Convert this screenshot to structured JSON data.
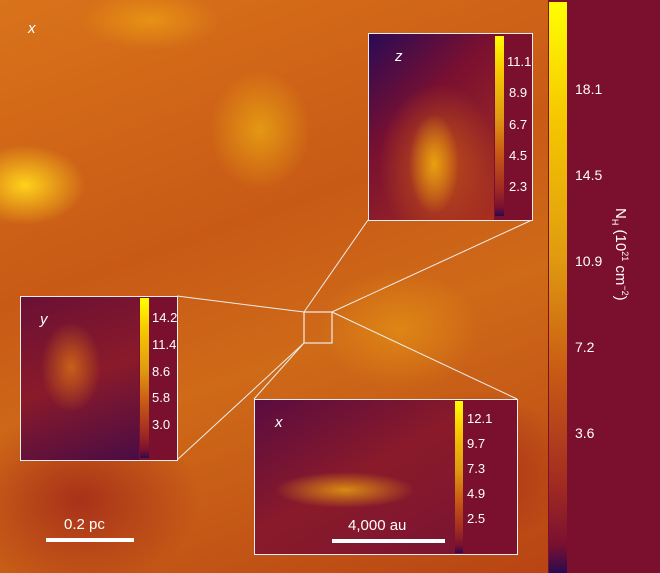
{
  "main": {
    "projection_label": "x",
    "scale_bar": "0.2 pc",
    "colorbar": {
      "label_main": "N",
      "label_sub": "H",
      "label_unit": " (10",
      "label_exp": "21",
      "label_unit2": " cm",
      "label_exp2": "−2",
      "label_close": ")",
      "ticks": [
        "18.1",
        "14.5",
        "10.9",
        "7.2",
        "3.6"
      ]
    }
  },
  "insets": {
    "z": {
      "label": "z",
      "ticks": [
        "11.1",
        "8.9",
        "6.7",
        "4.5",
        "2.3"
      ]
    },
    "y": {
      "label": "y",
      "ticks": [
        "14.2",
        "11.4",
        "8.6",
        "5.8",
        "3.0"
      ]
    },
    "x": {
      "label": "x",
      "ticks": [
        "12.1",
        "9.7",
        "7.3",
        "4.9",
        "2.5"
      ],
      "scale_bar": "4,000 au"
    }
  },
  "colors": {
    "colormap": [
      "#2a0a50",
      "#7a1030",
      "#c85a14",
      "#e09a10",
      "#ffff00"
    ],
    "panel_background": "#7a0f2e"
  }
}
